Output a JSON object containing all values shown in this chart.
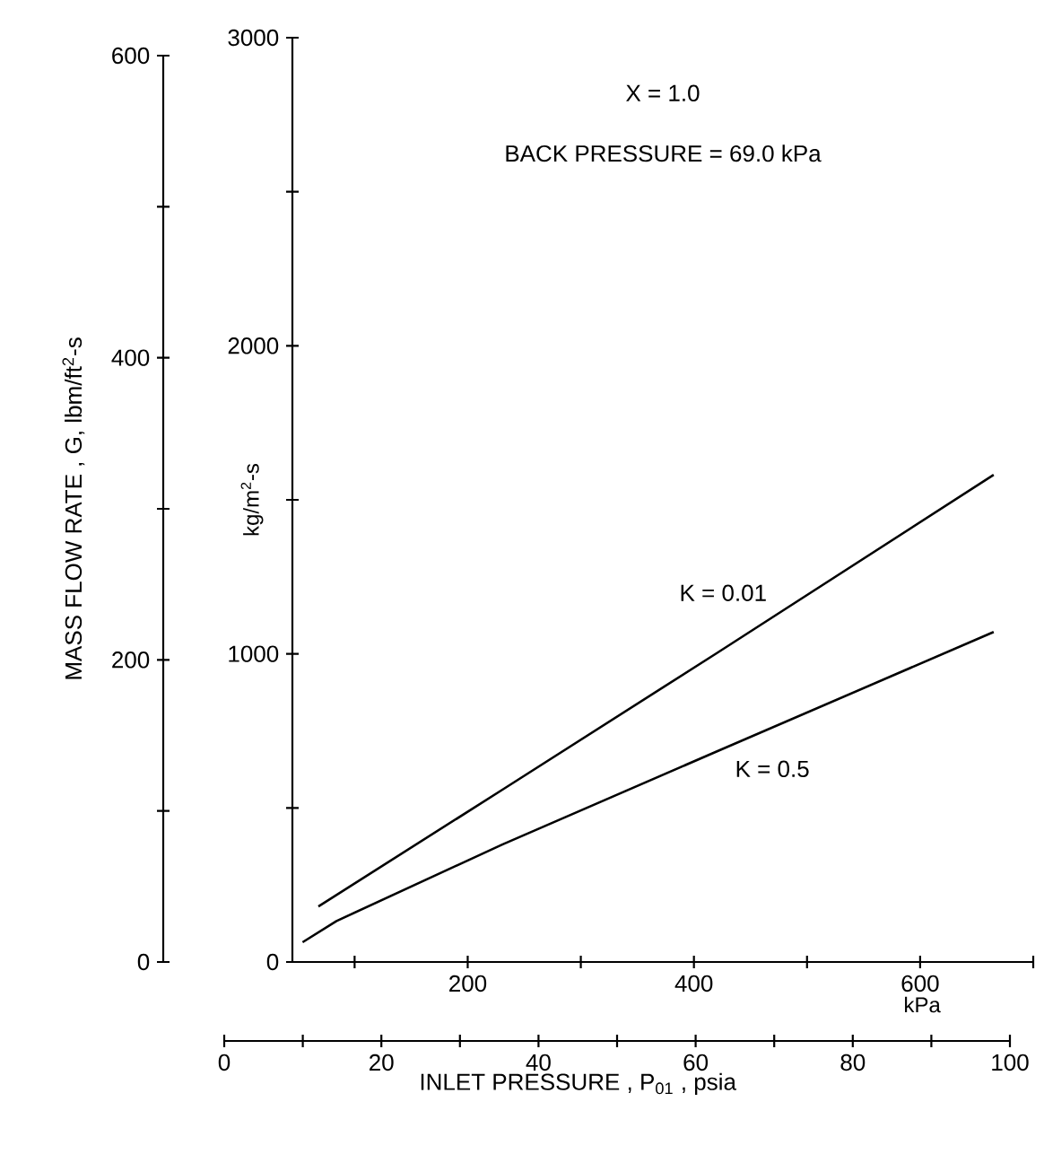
{
  "chart_data": {
    "type": "line",
    "annotations": [
      "X =  1.0",
      "BACK PRESSURE = 69.0 kPa"
    ],
    "xlabel": "kPa",
    "ylabel": "kg/m$^{2}$-s",
    "y2label": "MASS FLOW RATE , G, lbm/ft$^{2}$-s",
    "x2label": "INLET PRESSURE , P$_{01}$ , psia",
    "xlim": [
      45,
      700
    ],
    "xticks": [
      {
        "value": 100,
        "label": null
      },
      200,
      {
        "value": 300,
        "label": null
      },
      400,
      {
        "value": 500,
        "label": null
      },
      600,
      {
        "value": 700,
        "label": null
      }
    ],
    "ylim": [
      0,
      3000
    ],
    "yticks": [
      0,
      {
        "value": 500,
        "label": null
      },
      1000,
      {
        "value": 1500,
        "label": null
      },
      2000,
      {
        "value": 2500,
        "label": null
      },
      3000
    ],
    "y2lim": [
      0,
      600
    ],
    "y2ticks": [
      0,
      200,
      400,
      600
    ],
    "x2lim": [
      0,
      100
    ],
    "x2ticks": [
      0,
      20,
      40,
      60,
      80,
      100
    ],
    "series": [
      {
        "name": "K = 0.01",
        "color": "#000000",
        "x": [
          68,
          231,
          420,
          665
        ],
        "values": [
          180,
          560,
          1002,
          1581
        ]
      },
      {
        "name": "K = 0.5",
        "color": "#000000",
        "x": [
          54,
          84,
          231,
          420,
          665
        ],
        "values": [
          64,
          133,
          382,
          683,
          1071
        ]
      }
    ]
  }
}
